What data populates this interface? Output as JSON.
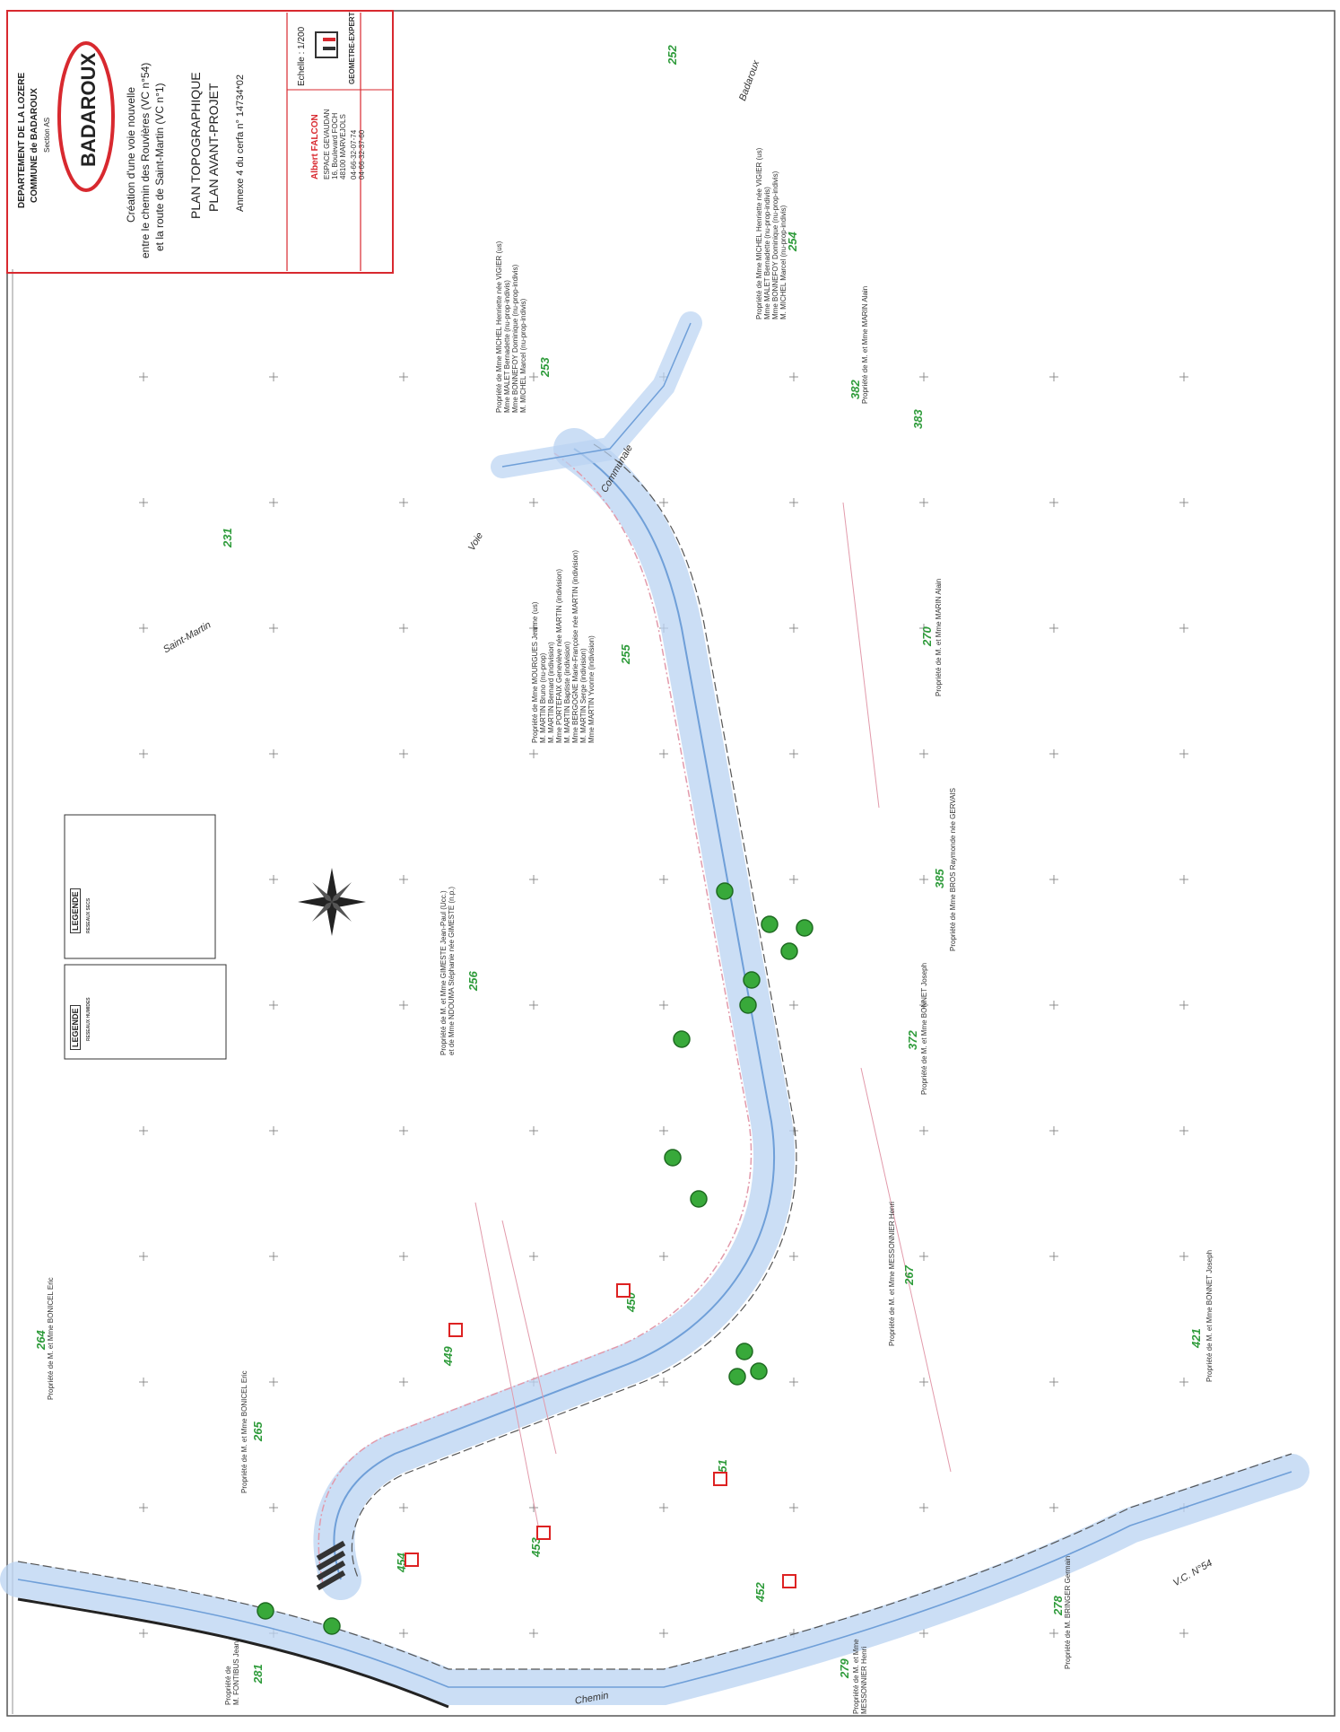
{
  "title_block": {
    "department": "DEPARTEMENT DE LA LOZERE",
    "commune": "COMMUNE de BADAROUX",
    "section": "Section AS",
    "town_logo": "BADAROUX",
    "project_line1": "Création d'une voie nouvelle",
    "project_line2": "entre le chemin des Rouvières (VC n°54)",
    "project_line3": "et la route de Saint-Martin (VC n°1)",
    "plan_title1": "PLAN TOPOGRAPHIQUE",
    "plan_title2": "PLAN AVANT-PROJET",
    "annex": "Annexe 4 du cerfa n° 14734*02",
    "scale": "Echelle : 1/200",
    "surveyor_name": "Albert FALCON",
    "surveyor_addr1": "ESPACE GEVAUDAN",
    "surveyor_addr2": "16, Boulevard FOCH",
    "surveyor_addr3": "48100 MARVEJOLS",
    "phone1": "04-66-32-07-74",
    "phone2": "04-66-32-37-60",
    "expert_label": "GEOMETRE-EXPERT"
  },
  "road_labels": {
    "communale": "Communale",
    "voie": "Voie",
    "saint_martin": "Saint-Martin",
    "badaroux": "Badaroux",
    "vc54": "V.C. N°54",
    "chemin": "Chemin"
  },
  "parcels": [
    "252",
    "253",
    "254",
    "231",
    "255",
    "382",
    "383",
    "270",
    "256",
    "385",
    "372",
    "267",
    "421",
    "264",
    "265",
    "449",
    "450",
    "451",
    "453",
    "454",
    "452",
    "278",
    "279",
    "281"
  ],
  "owners": {
    "o253": [
      "Propriété de Mme MICHEL Henriette née VIGIER (us)",
      "Mme MALET Bernadette (nu-prop-indivis)",
      "Mme BONNEFOY Dominique (nu-prop-indivis)",
      "M. MICHEL Marcel (nu-prop-indivis)"
    ],
    "o254": [
      "Propriété de Mme MICHEL Henriette née VIGIER (us)",
      "Mme MALET Bernadette (nu-prop-indivis)",
      "Mme BONNEFOY Dominique (nu-prop-indivis)",
      "M. MICHEL Marcel (nu-prop-indivis)"
    ],
    "o382": "Propriété de M. et Mme MARIN Alain",
    "o270": "Propriété de M. et Mme MARIN Alain",
    "o255": [
      "Propriété de Mme MOURGUES Jeanne (us)",
      "M. MARTIN Bruno (nu-prop)",
      "M. MARTIN Bernard (indivision)",
      "Mme PORTEFAIX Geneviève née MARTIN (indivision)",
      "M. MARTIN Baptiste (indivision)",
      "Mme BERGOGNE Marie-Françoise née MARTIN (indivision)",
      "M. MARTIN Serge (indivision)",
      "Mme MARTIN Yvonne (indivision)"
    ],
    "o385": "Propriété de Mme BROS Raymonde née GERVAIS",
    "o256": [
      "Propriété de M. et Mme GIMESTE Jean-Paul (Ucc.)",
      "et de Mme NDOUMA Stéphanie née GIMESTE (n.p.)"
    ],
    "o372": "Propriété de M. et Mme BONNET Joseph",
    "o267": "Propriété de M. et Mme MESSONNIER Henri",
    "o421": "Propriété de M. et Mme BONNET Joseph",
    "o264": "Propriété de M. et Mme BONICEL Eric",
    "o265": "Propriété de M. et Mme BONICEL Eric",
    "o278": "Propriété de M. BRINGER Germain",
    "o279": [
      "Propriété de M. et Mme",
      "MESSONNIER Henri"
    ],
    "o281": [
      "Propriété de",
      "M. FONTIBUS Jean"
    ]
  },
  "legend": {
    "heading_left": "LEGENDE",
    "heading_right": "LEGENDE",
    "left_title": "RESEAUX HUMIDES",
    "right_title": "RESEAUX SECS"
  },
  "colors": {
    "border_red": "#d8292f",
    "road_blue": "#8fb6e8",
    "road_pink": "#e9a4b4",
    "parcel_green": "#2e9b3a",
    "tree_green": "#38a93a"
  }
}
